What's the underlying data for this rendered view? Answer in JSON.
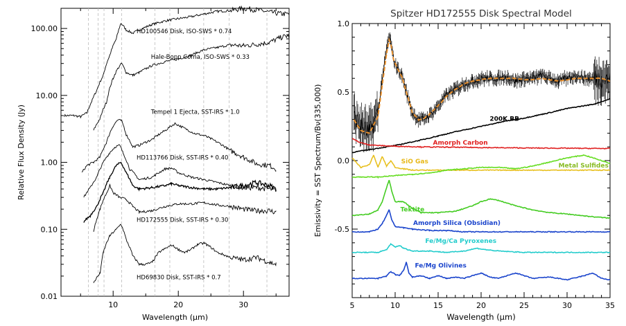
{
  "chart_data": [
    {
      "type": "line",
      "title": "",
      "xlabel": "Wavelength (µm)",
      "ylabel": "Relative Flux Density (Jy)",
      "xlim": [
        2,
        37
      ],
      "ylim": [
        0.01,
        200
      ],
      "yscale": "log",
      "grid": false,
      "xticks": [
        10,
        20,
        30
      ],
      "yticks": [
        0.01,
        0.1,
        1,
        10,
        100
      ],
      "ytick_labels": [
        "0.01",
        "0.10",
        "1.00",
        "10.00",
        "100.00"
      ],
      "dashed_vlines": [
        6.2,
        7.7,
        8.6,
        11.3,
        16.4,
        18.7,
        23.9,
        27.8,
        33.6
      ],
      "series": [
        {
          "label": "HD100546 Disk, ISO-SWS * 0.74",
          "label_at": [
            13.6,
            85
          ],
          "x": [
            2.5,
            4,
            5,
            6,
            6.8,
            7.5,
            8.5,
            9.5,
            10.5,
            11.2,
            12,
            13,
            14,
            16,
            18,
            20,
            22,
            24,
            26,
            28,
            30,
            32,
            34,
            36,
            37
          ],
          "y": [
            5,
            5,
            4.8,
            5.5,
            8.5,
            12,
            20,
            40,
            70,
            120,
            95,
            85,
            95,
            115,
            130,
            140,
            150,
            165,
            180,
            185,
            200,
            190,
            175,
            165,
            165
          ]
        },
        {
          "label": "Hale-Bopp Coma, ISO-SWS * 0.33",
          "label_at": [
            15.8,
            35
          ],
          "x": [
            7,
            8,
            9,
            10,
            10.7,
            11.3,
            12,
            13,
            14,
            16,
            18,
            20,
            22,
            24,
            26,
            28,
            30,
            32,
            34,
            36,
            37
          ],
          "y": [
            3,
            4.5,
            8,
            18,
            25,
            30,
            22,
            20,
            22,
            28,
            32,
            35,
            40,
            48,
            52,
            57,
            55,
            58,
            62,
            75,
            78
          ]
        },
        {
          "label": "Tempel 1 Ejecta, SST-IRS * 1.0",
          "label_at": [
            15.8,
            5.3
          ],
          "x": [
            5.2,
            6,
            7,
            8,
            9,
            10,
            10.7,
            11.3,
            12,
            13,
            14,
            16,
            18,
            19.5,
            21,
            22.5,
            24,
            26,
            28,
            30,
            32,
            34,
            35
          ],
          "y": [
            0.7,
            0.9,
            1,
            1.2,
            2,
            3.5,
            4.3,
            4.2,
            2.6,
            1.7,
            1.8,
            2.2,
            3,
            3.8,
            3.2,
            2.7,
            2.5,
            2,
            1.5,
            1.2,
            0.95,
            0.9,
            0.8
          ]
        },
        {
          "label": "HD113766 Disk, SST-IRS * 0.40",
          "label_at": [
            13.6,
            1.1
          ],
          "x": [
            5.5,
            6.5,
            7.5,
            8.5,
            9.5,
            10.3,
            11,
            11.5,
            12.5,
            14,
            16,
            18,
            19,
            20,
            22,
            24,
            26,
            28,
            30,
            32,
            34,
            35
          ],
          "y": [
            0.3,
            0.42,
            0.6,
            1,
            1.4,
            1.7,
            1.8,
            1.4,
            0.8,
            0.55,
            0.6,
            0.8,
            0.82,
            0.7,
            0.6,
            0.55,
            0.5,
            0.45,
            0.42,
            0.42,
            0.4,
            0.38
          ]
        },
        {
          "label": "",
          "label_at": [
            0,
            0
          ],
          "x": [
            5.5,
            6.5,
            7.5,
            8.5,
            9.5,
            10.5,
            11.2,
            12,
            13,
            14,
            16,
            18,
            19,
            20,
            22,
            24,
            26,
            28,
            30,
            32,
            34,
            35
          ],
          "y": [
            0.13,
            0.16,
            0.22,
            0.35,
            0.6,
            0.9,
            1.0,
            0.7,
            0.45,
            0.4,
            0.42,
            0.45,
            0.48,
            0.45,
            0.42,
            0.4,
            0.4,
            0.42,
            0.45,
            0.5,
            0.45,
            0.4
          ]
        },
        {
          "label": "HD172555 Disk, SST-IRS * 0.30",
          "label_at": [
            13.6,
            0.13
          ],
          "x": [
            7,
            8,
            9,
            9.5,
            10,
            11,
            12,
            13,
            14,
            16,
            18,
            20,
            22,
            24,
            26,
            28,
            30,
            32,
            34,
            35
          ],
          "y": [
            0.09,
            0.2,
            0.35,
            0.45,
            0.35,
            0.3,
            0.28,
            0.22,
            0.18,
            0.19,
            0.22,
            0.24,
            0.24,
            0.25,
            0.23,
            0.22,
            0.2,
            0.19,
            0.19,
            0.18
          ]
        },
        {
          "label": "HD69830 Disk, SST-IRS * 0.7",
          "label_at": [
            13.6,
            0.018
          ],
          "x": [
            7,
            8,
            8.5,
            9.5,
            10.5,
            11.2,
            12,
            13,
            14,
            15,
            16,
            17,
            19,
            20,
            21,
            22,
            23,
            24,
            26,
            28,
            30,
            32,
            34,
            35
          ],
          "y": [
            0.016,
            0.022,
            0.045,
            0.08,
            0.1,
            0.12,
            0.07,
            0.04,
            0.03,
            0.03,
            0.032,
            0.045,
            0.058,
            0.05,
            0.045,
            0.05,
            0.06,
            0.062,
            0.045,
            0.038,
            0.035,
            0.038,
            0.032,
            0.03
          ]
        }
      ]
    },
    {
      "type": "line",
      "title": "Spitzer HD172555 Disk Spectral Model",
      "xlabel": "Wavelength (µm)",
      "ylabel": "Emissivity = SST Spectrum/Bν(335,000)",
      "xlim": [
        5,
        35
      ],
      "ylim": [
        -1.0,
        1.0
      ],
      "grid": false,
      "xticks": [
        5,
        10,
        15,
        20,
        25,
        30,
        35
      ],
      "yticks": [
        -0.5,
        0.0,
        0.5,
        1.0
      ],
      "ytick_labels": [
        "-0.5",
        "0.0",
        "0.5",
        "1.0"
      ],
      "series": [
        {
          "label": "",
          "color": "#000000",
          "errorbars": true,
          "x": [
            5.2,
            6,
            7,
            8,
            8.5,
            9,
            9.3,
            9.5,
            9.8,
            10.2,
            10.8,
            11.3,
            12,
            12.7,
            13.2,
            14,
            15,
            16,
            17,
            18,
            19,
            20,
            21,
            22,
            23,
            24,
            25,
            26,
            27,
            28,
            29,
            30,
            31,
            32,
            33,
            34,
            35
          ],
          "y": [
            0.32,
            0.25,
            0.2,
            0.35,
            0.6,
            0.8,
            0.9,
            0.86,
            0.74,
            0.68,
            0.62,
            0.5,
            0.35,
            0.3,
            0.3,
            0.33,
            0.4,
            0.48,
            0.52,
            0.56,
            0.58,
            0.6,
            0.6,
            0.6,
            0.61,
            0.58,
            0.6,
            0.6,
            0.62,
            0.6,
            0.58,
            0.6,
            0.62,
            0.6,
            0.6,
            0.6,
            0.58
          ]
        },
        {
          "label": "",
          "color": "#e8902e",
          "dashed": true,
          "x": [
            5.2,
            6,
            7,
            8,
            8.5,
            9,
            9.3,
            9.5,
            9.8,
            10.2,
            10.8,
            11.3,
            12,
            12.7,
            13.2,
            14,
            15,
            16,
            17,
            18,
            19,
            20,
            21,
            22,
            23,
            24,
            25,
            26,
            27,
            28,
            29,
            30,
            31,
            32,
            33,
            34,
            35
          ],
          "y": [
            0.3,
            0.22,
            0.2,
            0.32,
            0.55,
            0.78,
            0.88,
            0.85,
            0.74,
            0.68,
            0.61,
            0.5,
            0.35,
            0.3,
            0.3,
            0.34,
            0.4,
            0.47,
            0.52,
            0.56,
            0.58,
            0.59,
            0.6,
            0.6,
            0.6,
            0.6,
            0.59,
            0.59,
            0.6,
            0.59,
            0.58,
            0.59,
            0.6,
            0.6,
            0.6,
            0.6,
            0.58
          ]
        },
        {
          "label": "200K BB",
          "color": "#000000",
          "label_at": [
            21,
            0.29
          ],
          "label_color": "#000000",
          "x": [
            5,
            7,
            10,
            13,
            15,
            17,
            20,
            23,
            25,
            28,
            30,
            33,
            35
          ],
          "y": [
            0.06,
            0.08,
            0.11,
            0.15,
            0.18,
            0.21,
            0.25,
            0.29,
            0.31,
            0.35,
            0.38,
            0.41,
            0.45
          ]
        },
        {
          "label": "Amorph Carbon",
          "color": "#e02020",
          "label_at": [
            14.4,
            0.115
          ],
          "label_color": "#e02020",
          "x": [
            5,
            6,
            7,
            8,
            10,
            13,
            16,
            20,
            25,
            30,
            35
          ],
          "y": [
            0.16,
            0.13,
            0.115,
            0.11,
            0.105,
            0.1,
            0.098,
            0.095,
            0.092,
            0.09,
            0.088
          ]
        },
        {
          "label": "SiO Gas",
          "color": "#e8c020",
          "label_at": [
            10.7,
            -0.02
          ],
          "label_color": "#e8b818",
          "x": [
            5,
            6,
            7,
            7.5,
            8,
            8.5,
            9,
            9.5,
            10,
            11,
            12,
            14,
            16,
            20,
            25,
            30,
            35
          ],
          "y": [
            0.02,
            -0.05,
            -0.03,
            0.04,
            -0.05,
            0.03,
            -0.04,
            0.0,
            -0.05,
            -0.06,
            -0.07,
            -0.07,
            -0.07,
            -0.07,
            -0.07,
            -0.07,
            -0.07
          ]
        },
        {
          "label": "Metal Sulfides",
          "color": "#66dd22",
          "label_at": [
            29,
            -0.05
          ],
          "label_color": "#88bb22",
          "x": [
            5,
            8,
            10,
            12,
            14,
            16,
            18,
            20,
            22,
            24,
            26,
            28,
            30,
            31,
            32,
            33,
            34,
            35
          ],
          "y": [
            -0.12,
            -0.12,
            -0.11,
            -0.1,
            -0.09,
            -0.07,
            -0.06,
            -0.05,
            -0.05,
            -0.06,
            -0.04,
            -0.01,
            0.02,
            0.03,
            0.04,
            0.02,
            0.0,
            -0.02
          ]
        },
        {
          "label": "Tektite",
          "color": "#44cc22",
          "label_at": [
            10.6,
            -0.37
          ],
          "label_color": "#44cc22",
          "x": [
            5,
            7,
            8,
            8.5,
            9,
            9.3,
            9.6,
            10,
            11,
            12,
            13,
            15,
            17,
            19,
            20,
            21,
            22,
            24,
            26,
            28,
            30,
            33,
            35
          ],
          "y": [
            -0.4,
            -0.39,
            -0.36,
            -0.3,
            -0.2,
            -0.14,
            -0.22,
            -0.3,
            -0.3,
            -0.35,
            -0.38,
            -0.38,
            -0.37,
            -0.33,
            -0.3,
            -0.28,
            -0.29,
            -0.33,
            -0.36,
            -0.38,
            -0.39,
            -0.41,
            -0.42
          ]
        },
        {
          "label": "Amorph Silica (Obsidian)",
          "color": "#1a44cc",
          "label_at": [
            12.1,
            -0.47
          ],
          "label_color": "#1a44cc",
          "x": [
            5,
            7,
            8,
            8.5,
            9,
            9.3,
            9.6,
            10,
            11,
            12,
            14,
            16,
            18,
            20,
            22,
            25,
            30,
            35
          ],
          "y": [
            -0.52,
            -0.52,
            -0.5,
            -0.46,
            -0.4,
            -0.36,
            -0.43,
            -0.48,
            -0.49,
            -0.5,
            -0.51,
            -0.51,
            -0.52,
            -0.52,
            -0.52,
            -0.52,
            -0.52,
            -0.52
          ]
        },
        {
          "label": "Fe/Mg/Ca Pyroxenes",
          "color": "#22cccc",
          "label_at": [
            13.5,
            -0.6
          ],
          "label_color": "#22cccc",
          "x": [
            5,
            8,
            9,
            9.5,
            10,
            10.5,
            11,
            12,
            14,
            16,
            18,
            19.5,
            20.5,
            22,
            25,
            30,
            35
          ],
          "y": [
            -0.67,
            -0.67,
            -0.65,
            -0.61,
            -0.63,
            -0.62,
            -0.64,
            -0.66,
            -0.66,
            -0.67,
            -0.66,
            -0.64,
            -0.65,
            -0.66,
            -0.67,
            -0.67,
            -0.67
          ]
        },
        {
          "label": "Fe/Mg Olivines",
          "color": "#1a44cc",
          "label_at": [
            12.3,
            -0.78
          ],
          "label_color": "#1a44cc",
          "x": [
            5,
            8,
            9,
            9.5,
            10,
            10.5,
            11,
            11.3,
            11.6,
            12,
            13,
            14,
            15,
            16,
            17,
            18,
            19,
            20,
            21,
            22,
            23,
            24,
            25,
            26,
            28,
            30,
            32,
            33,
            34,
            35
          ],
          "y": [
            -0.86,
            -0.86,
            -0.84,
            -0.81,
            -0.83,
            -0.84,
            -0.8,
            -0.74,
            -0.82,
            -0.85,
            -0.84,
            -0.86,
            -0.84,
            -0.86,
            -0.85,
            -0.86,
            -0.84,
            -0.82,
            -0.85,
            -0.86,
            -0.84,
            -0.82,
            -0.84,
            -0.86,
            -0.85,
            -0.87,
            -0.84,
            -0.82,
            -0.86,
            -0.87
          ]
        }
      ]
    }
  ]
}
